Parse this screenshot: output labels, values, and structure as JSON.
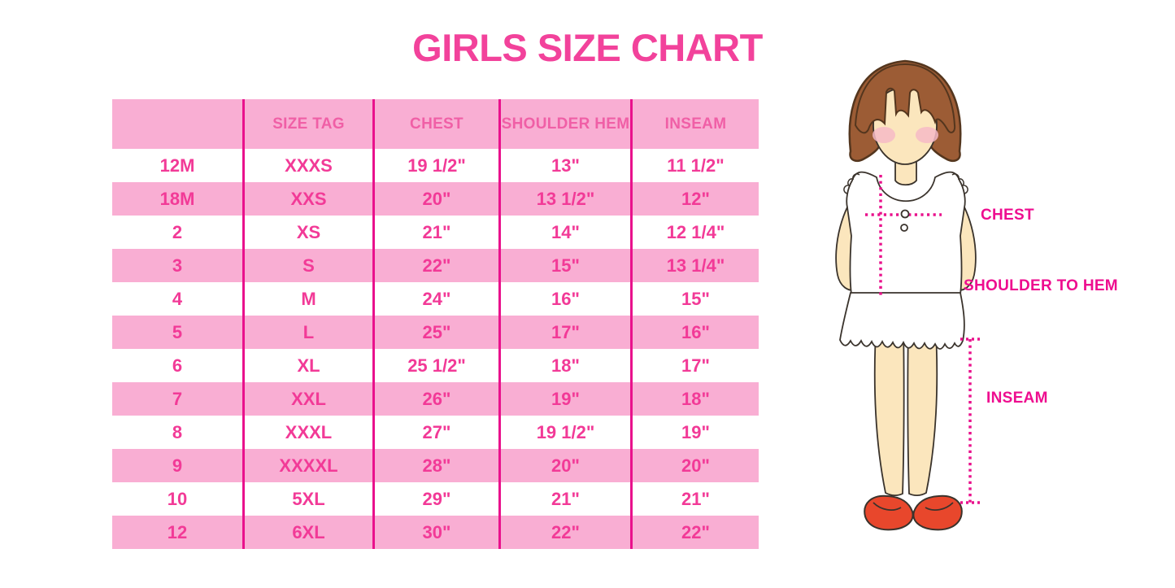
{
  "chart_data": {
    "type": "table",
    "title": "GIRLS SIZE CHART",
    "columns": [
      "",
      "SIZE TAG",
      "CHEST",
      "SHOULDER HEM",
      "INSEAM"
    ],
    "rows": [
      [
        "12M",
        "XXXS",
        "19 1/2\"",
        "13\"",
        "11 1/2\""
      ],
      [
        "18M",
        "XXS",
        "20\"",
        "13 1/2\"",
        "12\""
      ],
      [
        "2",
        "XS",
        "21\"",
        "14\"",
        "12 1/4\""
      ],
      [
        "3",
        "S",
        "22\"",
        "15\"",
        "13 1/4\""
      ],
      [
        "4",
        "M",
        "24\"",
        "16\"",
        "15\""
      ],
      [
        "5",
        "L",
        "25\"",
        "17\"",
        "16\""
      ],
      [
        "6",
        "XL",
        "25 1/2\"",
        "18\"",
        "17\""
      ],
      [
        "7",
        "XXL",
        "26\"",
        "19\"",
        "18\""
      ],
      [
        "8",
        "XXXL",
        "27\"",
        "19 1/2\"",
        "19\""
      ],
      [
        "9",
        "XXXXL",
        "28\"",
        "20\"",
        "20\""
      ],
      [
        "10",
        "5XL",
        "29\"",
        "21\"",
        "21\""
      ],
      [
        "12",
        "6XL",
        "30\"",
        "22\"",
        "22\""
      ]
    ],
    "layout": {
      "header_background": "pink",
      "row_striping": "white/pink alternating",
      "gridlines": "vertical only"
    }
  },
  "figure_labels": {
    "chest": "CHEST",
    "shoulder_hem": "SHOULDER TO HEM",
    "inseam": "INSEAM"
  },
  "colors": {
    "title_pink": "#f2429b",
    "header_text_pink": "#f05fa6",
    "cell_text_pink": "#f23a97",
    "row_pink": "#f9aed3",
    "line_magenta": "#e9118c",
    "label_magenta": "#ee0d8f",
    "hair_brown": "#9c5c35",
    "hair_outline": "#54361e",
    "skin": "#fbe6bd",
    "outline_dark": "#3a332c",
    "blush_pink": "#f6bac7",
    "shoe_red": "#e8472c",
    "top_white": "#ffffff"
  }
}
